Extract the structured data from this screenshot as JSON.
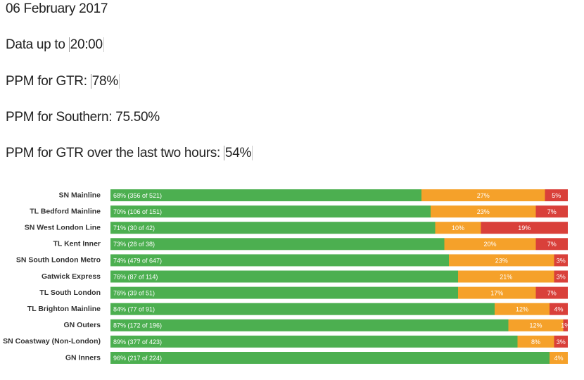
{
  "header": {
    "date": "06 February 2017",
    "data_up_to": {
      "label": "Data up to",
      "value": "20:00"
    },
    "ppm_gtr": {
      "label": "PPM for GTR:",
      "value": "78%"
    },
    "ppm_southern": {
      "label": "PPM for Southern:",
      "value": "75.50%"
    },
    "ppm_gtr_two_hours": {
      "label": "PPM for GTR over the last two hours:",
      "value": "54%"
    }
  },
  "chart_data": {
    "type": "stacked-bar",
    "orientation": "horizontal",
    "categories": [
      "SN Mainline",
      "TL Bedford Mainline",
      "SN West London Line",
      "TL Kent Inner",
      "SN South London Metro",
      "Gatwick Express",
      "TL South London",
      "TL Brighton Mainline",
      "GN Outers",
      "SN Coastway (Non-London)",
      "GN Inners"
    ],
    "xlim": [
      0,
      100
    ],
    "series": [
      {
        "color": "#4caf50",
        "values": [
          68,
          70,
          71,
          73,
          74,
          76,
          76,
          84,
          87,
          89,
          96
        ],
        "value_labels": [
          "68% (356 of 521)",
          "70% (106 of 151)",
          "71% (30 of 42)",
          "73% (28 of 38)",
          "74% (479 of 647)",
          "76% (87 of 114)",
          "76% (39 of 51)",
          "84% (77 of 91)",
          "87% (172 of 196)",
          "89% (377 of 423)",
          "96% (217 of 224)"
        ]
      },
      {
        "color": "#f5a12a",
        "values": [
          27,
          23,
          10,
          20,
          23,
          21,
          17,
          12,
          12,
          8,
          4
        ],
        "value_labels": [
          "27%",
          "23%",
          "10%",
          "20%",
          "23%",
          "21%",
          "17%",
          "12%",
          "12%",
          "8%",
          "4%"
        ]
      },
      {
        "color": "#d9403a",
        "values": [
          5,
          7,
          19,
          7,
          3,
          3,
          7,
          4,
          1,
          3,
          null
        ],
        "value_labels": [
          "5%",
          "7%",
          "19%",
          "7%",
          "3%",
          "3%",
          "7%",
          "4%",
          "1%",
          "3%",
          null
        ]
      }
    ]
  }
}
